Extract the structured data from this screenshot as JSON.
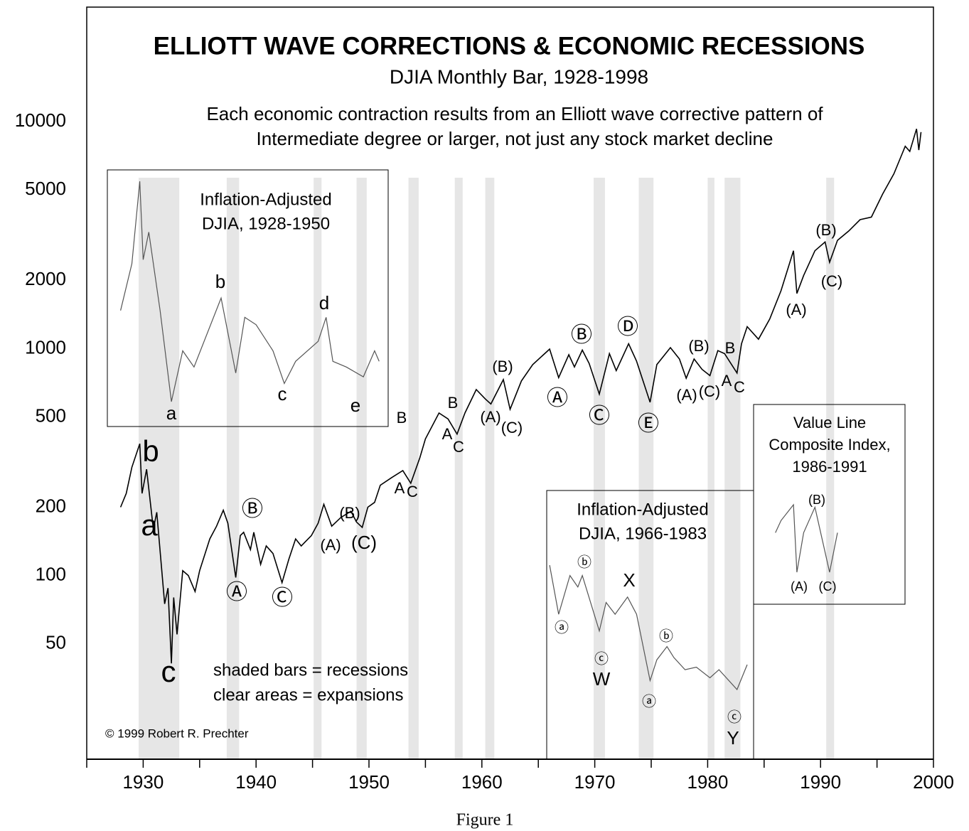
{
  "chart_data": {
    "type": "line",
    "title": "ELLIOTT WAVE CORRECTIONS & ECONOMIC RECESSIONS",
    "subtitle": "DJIA Monthly Bar, 1928-1998",
    "description": [
      "Each economic contraction results from an Elliott wave corrective pattern of",
      "Intermediate degree or larger, not just any stock market decline"
    ],
    "log_scale": true,
    "color": "#000000",
    "xlim": [
      1925,
      2000
    ],
    "xticks": [
      1930,
      1940,
      1950,
      1960,
      1970,
      1980,
      1990,
      2000
    ],
    "xminor_ticks": [
      1925,
      1935,
      1945,
      1955,
      1965,
      1975,
      1985,
      1995
    ],
    "ylim": [
      15.5,
      32000
    ],
    "yticks": [
      50,
      100,
      200,
      500,
      1000,
      2000,
      5000,
      10000
    ],
    "x": [
      1928.0,
      1928.5,
      1929.0,
      1929.7,
      1929.9,
      1930.3,
      1930.9,
      1931.2,
      1931.9,
      1932.2,
      1932.5,
      1932.7,
      1933.0,
      1933.5,
      1934.0,
      1934.6,
      1935.0,
      1935.9,
      1936.5,
      1937.1,
      1937.5,
      1938.2,
      1938.6,
      1938.9,
      1939.5,
      1939.8,
      1940.4,
      1940.9,
      1941.5,
      1942.3,
      1942.9,
      1943.5,
      1944.0,
      1944.9,
      1945.5,
      1946.0,
      1946.7,
      1947.5,
      1948.4,
      1948.9,
      1949.4,
      1949.9,
      1950.5,
      1951.0,
      1952.0,
      1953.0,
      1953.7,
      1954.5,
      1955.0,
      1956.2,
      1957.0,
      1957.8,
      1958.5,
      1959.5,
      1960.3,
      1960.8,
      1961.9,
      1962.5,
      1963.5,
      1964.5,
      1966.0,
      1966.8,
      1967.7,
      1968.2,
      1968.9,
      1969.5,
      1970.4,
      1971.3,
      1971.9,
      1973.0,
      1973.7,
      1974.9,
      1975.5,
      1976.7,
      1977.5,
      1978.1,
      1978.8,
      1979.5,
      1980.2,
      1980.9,
      1981.5,
      1982.6,
      1983.0,
      1983.5,
      1984.5,
      1985.5,
      1986.5,
      1987.6,
      1987.9,
      1988.5,
      1989.5,
      1990.4,
      1990.8,
      1991.5,
      1992.5,
      1993.5,
      1994.5,
      1995.5,
      1996.5,
      1997.5,
      1997.9,
      1998.5,
      1998.7,
      1998.9
    ],
    "values": [
      200,
      230,
      300,
      381,
      230,
      294,
      160,
      190,
      75,
      88,
      41,
      80,
      55,
      105,
      100,
      85,
      105,
      145,
      165,
      194,
      170,
      98,
      150,
      155,
      130,
      155,
      112,
      135,
      125,
      93,
      118,
      145,
      135,
      150,
      170,
      206,
      165,
      180,
      192,
      172,
      163,
      200,
      210,
      250,
      270,
      290,
      255,
      330,
      400,
      520,
      490,
      420,
      520,
      660,
      600,
      570,
      730,
      540,
      720,
      850,
      995,
      745,
      940,
      830,
      985,
      860,
      630,
      950,
      800,
      1050,
      880,
      580,
      850,
      1010,
      900,
      740,
      900,
      810,
      760,
      980,
      950,
      780,
      1050,
      1250,
      1100,
      1350,
      1800,
      2700,
      1750,
      2100,
      2700,
      2950,
      2400,
      3000,
      3300,
      3700,
      3800,
      4800,
      5900,
      7800,
      7400,
      9300,
      7500,
      9000
    ],
    "recessions": [
      [
        1929.6,
        1933.2
      ],
      [
        1937.4,
        1938.5
      ],
      [
        1945.1,
        1945.8
      ],
      [
        1948.9,
        1949.8
      ],
      [
        1953.5,
        1954.4
      ],
      [
        1957.6,
        1958.3
      ],
      [
        1960.3,
        1961.1
      ],
      [
        1969.9,
        1970.9
      ],
      [
        1973.9,
        1975.2
      ],
      [
        1980.0,
        1980.6
      ],
      [
        1981.5,
        1982.9
      ],
      [
        1990.5,
        1991.2
      ]
    ],
    "recession_color": "#e6e6e6",
    "wave_labels": [
      "b",
      "a",
      "c",
      "Ⓑ",
      "Ⓐ",
      "Ⓒ",
      "(A)",
      "(B)",
      "(C)",
      "B",
      "A",
      "C",
      "B",
      "A",
      "C",
      "(A)",
      "(B)",
      "(C)",
      "Ⓐ",
      "Ⓑ",
      "Ⓒ",
      "Ⓓ",
      "Ⓔ",
      "(A)",
      "(B)",
      "(C)",
      "A",
      "C",
      "B",
      "(A)",
      "(B)",
      "(C)"
    ],
    "legend_text": [
      "shaded bars = recessions",
      "clear areas = expansions"
    ],
    "copyright": "© 1999 Robert R. Prechter",
    "caption": "Figure 1",
    "insets": [
      {
        "title": [
          "Inflation-Adjusted",
          "DJIA, 1928-1950"
        ],
        "x": [
          1928.0,
          1929.0,
          1929.7,
          1930.0,
          1930.5,
          1931.5,
          1932.5,
          1933.5,
          1934.5,
          1936.9,
          1938.2,
          1939.0,
          1940.0,
          1941.5,
          1942.5,
          1943.5,
          1945.5,
          1946.2,
          1946.8,
          1948.0,
          1949.5,
          1950.5,
          1950.9
        ],
        "values": [
          1500,
          2400,
          5500,
          2500,
          3300,
          1500,
          600,
          1000,
          850,
          1700,
          800,
          1400,
          1300,
          1000,
          720,
          900,
          1100,
          1400,
          900,
          850,
          770,
          1000,
          900
        ],
        "labels": [
          "b",
          "a",
          "d",
          "c",
          "e"
        ]
      },
      {
        "title": [
          "Inflation-Adjusted",
          "DJIA, 1966-1983"
        ],
        "x": [
          1966.0,
          1966.8,
          1967.8,
          1968.5,
          1968.9,
          1970.4,
          1971.0,
          1971.8,
          1972.9,
          1973.7,
          1974.9,
          1975.5,
          1976.4,
          1977.0,
          1978.0,
          1979.0,
          1980.2,
          1981.0,
          1982.6,
          1983.5
        ],
        "values": [
          1100,
          700,
          1000,
          900,
          1000,
          600,
          780,
          700,
          820,
          700,
          380,
          460,
          520,
          470,
          420,
          430,
          390,
          420,
          350,
          440
        ],
        "labels": [
          "ⓑ",
          "ⓐ",
          "X",
          "ⓒ",
          "W",
          "ⓑ",
          "ⓐ",
          "ⓒ",
          "Y"
        ]
      },
      {
        "title": [
          "Value Line",
          "Composite Index,",
          "1986-1991"
        ],
        "x": [
          1986.0,
          1986.5,
          1987.6,
          1987.9,
          1988.5,
          1989.5,
          1990.8,
          1991.5
        ],
        "values": [
          150,
          170,
          200,
          100,
          150,
          195,
          100,
          150
        ],
        "labels": [
          "(B)",
          "(A)",
          "(C)"
        ]
      }
    ]
  }
}
